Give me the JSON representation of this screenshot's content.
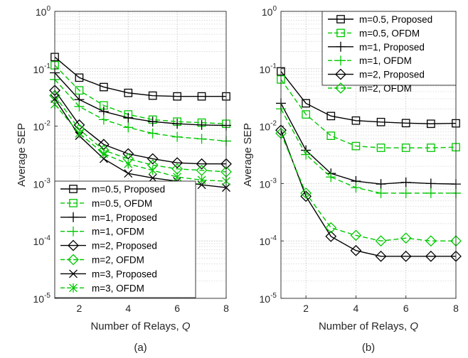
{
  "chart_data": [
    {
      "type": "line",
      "panel_label": "(a)",
      "xlabel": "Number of Relays,",
      "xlabel_symbol": "Q",
      "ylabel": "Average SEP",
      "x": [
        1,
        2,
        3,
        4,
        5,
        6,
        7,
        8
      ],
      "xticks": [
        "2",
        "4",
        "6",
        "8"
      ],
      "xlim": [
        1,
        8
      ],
      "ylim": [
        1e-05,
        1
      ],
      "yscale": "log",
      "ytick_base": "10",
      "ytick_exponents": [
        "-5",
        "-4",
        "-3",
        "-2",
        "-1",
        "0"
      ],
      "grid": true,
      "legend_position": "bottom-right",
      "series": [
        {
          "name": "m=0.5, Proposed",
          "color": "#000000",
          "dash": "solid",
          "marker": "square",
          "values": [
            0.16,
            0.07,
            0.048,
            0.038,
            0.034,
            0.033,
            0.033,
            0.033
          ]
        },
        {
          "name": "m=0.5, OFDM",
          "color": "#00c800",
          "dash": "dashed",
          "marker": "square",
          "values": [
            0.115,
            0.042,
            0.023,
            0.016,
            0.013,
            0.012,
            0.0115,
            0.011
          ]
        },
        {
          "name": "m=1, Proposed",
          "color": "#000000",
          "dash": "solid",
          "marker": "plus",
          "values": [
            0.085,
            0.029,
            0.018,
            0.014,
            0.012,
            0.011,
            0.0105,
            0.0103
          ]
        },
        {
          "name": "m=1, OFDM",
          "color": "#00c800",
          "dash": "dashed",
          "marker": "plus",
          "values": [
            0.065,
            0.022,
            0.013,
            0.0095,
            0.0075,
            0.0065,
            0.006,
            0.0055
          ]
        },
        {
          "name": "m=2, Proposed",
          "color": "#000000",
          "dash": "solid",
          "marker": "diamond",
          "values": [
            0.042,
            0.0105,
            0.0048,
            0.0033,
            0.0027,
            0.0023,
            0.0022,
            0.0022
          ]
        },
        {
          "name": "m=2, OFDM",
          "color": "#00c800",
          "dash": "dashed",
          "marker": "diamond",
          "values": [
            0.034,
            0.0088,
            0.0038,
            0.0027,
            0.0021,
            0.0018,
            0.0017,
            0.0016
          ]
        },
        {
          "name": "m=3, Proposed",
          "color": "#000000",
          "dash": "solid",
          "marker": "x",
          "values": [
            0.03,
            0.0068,
            0.0027,
            0.0015,
            0.00125,
            0.0011,
            0.00095,
            0.00085
          ]
        },
        {
          "name": "m=3, OFDM",
          "color": "#00c800",
          "dash": "dashed",
          "marker": "asterisk",
          "values": [
            0.024,
            0.0075,
            0.0033,
            0.0022,
            0.0017,
            0.0013,
            0.00115,
            0.0011
          ]
        }
      ]
    },
    {
      "type": "line",
      "panel_label": "(b)",
      "xlabel": "Number of Relays,",
      "xlabel_symbol": "Q",
      "ylabel": "Average SEP",
      "x": [
        1,
        2,
        3,
        4,
        5,
        6,
        7,
        8
      ],
      "xticks": [
        "2",
        "4",
        "6",
        "8"
      ],
      "xlim": [
        1,
        8
      ],
      "ylim": [
        1e-05,
        1
      ],
      "yscale": "log",
      "ytick_base": "10",
      "ytick_exponents": [
        "-5",
        "-4",
        "-3",
        "-2",
        "-1",
        "0"
      ],
      "grid": true,
      "legend_position": "top-right",
      "series": [
        {
          "name": "m=0.5, Proposed",
          "color": "#000000",
          "dash": "solid",
          "marker": "square",
          "values": [
            0.09,
            0.025,
            0.015,
            0.0125,
            0.0118,
            0.0113,
            0.011,
            0.0112
          ]
        },
        {
          "name": "m=0.5, OFDM",
          "color": "#00c800",
          "dash": "dashed",
          "marker": "square",
          "values": [
            0.065,
            0.016,
            0.0068,
            0.0045,
            0.0042,
            0.0042,
            0.0042,
            0.0043
          ]
        },
        {
          "name": "m=1, Proposed",
          "color": "#000000",
          "dash": "solid",
          "marker": "plus",
          "values": [
            0.025,
            0.0038,
            0.0015,
            0.0011,
            0.00098,
            0.00105,
            0.001,
            0.00098
          ]
        },
        {
          "name": "m=1, OFDM",
          "color": "#00c800",
          "dash": "dashed",
          "marker": "plus",
          "values": [
            0.02,
            0.0032,
            0.0013,
            0.00085,
            0.00068,
            0.00068,
            0.00068,
            0.00068
          ]
        },
        {
          "name": "m=2, Proposed",
          "color": "#000000",
          "dash": "solid",
          "marker": "diamond",
          "values": [
            0.0085,
            0.0006,
            0.00012,
            6.8e-05,
            5.4e-05,
            5.4e-05,
            5.4e-05,
            5.4e-05
          ]
        },
        {
          "name": "m=2, OFDM",
          "color": "#00c800",
          "dash": "dashed",
          "marker": "diamond",
          "values": [
            0.0075,
            0.00068,
            0.00017,
            0.000125,
            0.0001,
            0.000112,
            0.0001,
            0.0001
          ]
        }
      ]
    }
  ]
}
